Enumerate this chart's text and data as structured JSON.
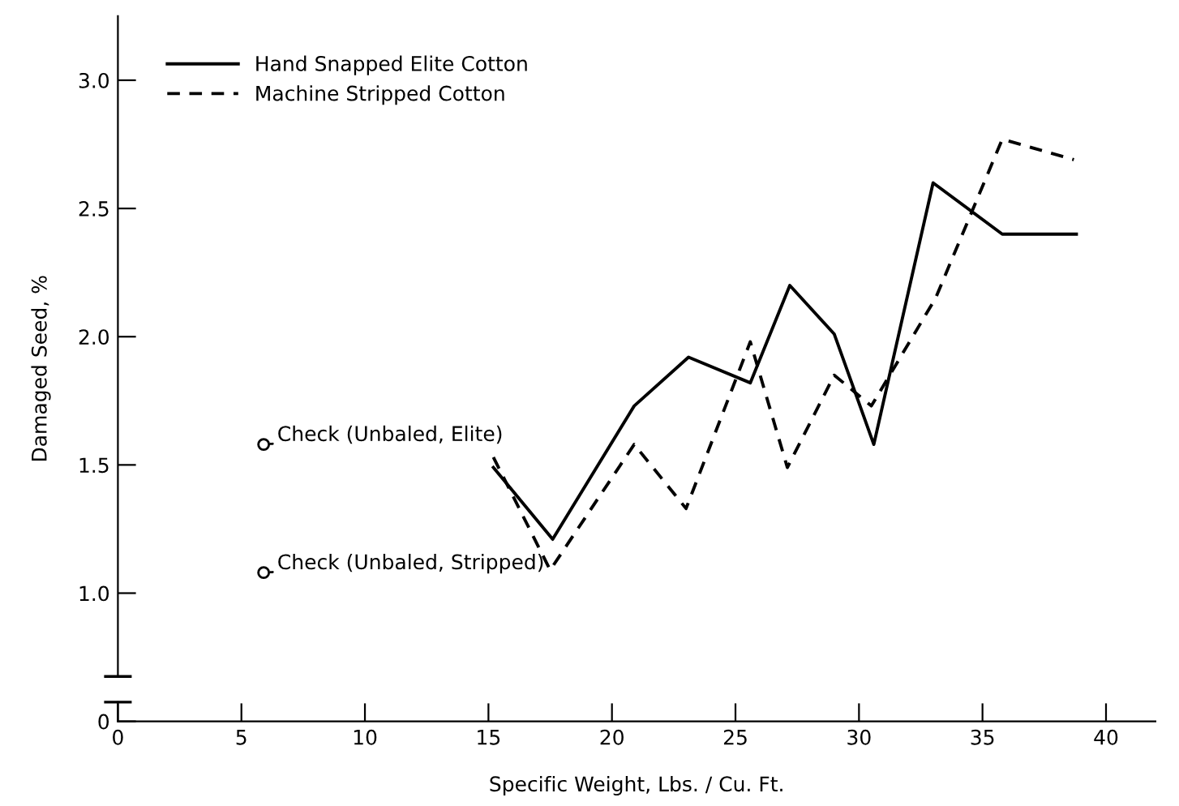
{
  "chart_data": {
    "type": "line",
    "xlabel": "Specific Weight, Lbs. / Cu. Ft.",
    "ylabel": "Damaged Seed, %",
    "xlim": [
      0,
      42
    ],
    "ylim": [
      0.5,
      3.25
    ],
    "xticks": [
      0,
      5,
      10,
      15,
      20,
      25,
      30,
      35,
      40
    ],
    "yticks": [
      {
        "value": 0.5,
        "label": "0"
      },
      {
        "value": 1.0,
        "label": "1.0"
      },
      {
        "value": 1.5,
        "label": "1.5"
      },
      {
        "value": 2.0,
        "label": "2.0"
      },
      {
        "value": 2.5,
        "label": "2.5"
      },
      {
        "value": 3.0,
        "label": "3.0"
      }
    ],
    "legend": "top left",
    "grid": false,
    "series": [
      {
        "name": "Hand Snapped Elite Cotton",
        "color": "#000000",
        "line_style": "solid",
        "x": [
          15.2,
          17.6,
          20.9,
          23.1,
          25.6,
          27.2,
          29.0,
          30.6,
          33.0,
          35.8,
          38.8
        ],
        "values": [
          1.49,
          1.21,
          1.73,
          1.92,
          1.82,
          2.2,
          2.01,
          1.58,
          2.6,
          2.4,
          2.4
        ]
      },
      {
        "name": "Machine Stripped Cotton",
        "color": "#000000",
        "line_style": "dashed",
        "x": [
          15.2,
          17.5,
          20.9,
          23.0,
          25.6,
          27.1,
          29.0,
          30.5,
          33.1,
          35.8,
          38.7
        ],
        "values": [
          1.53,
          1.09,
          1.58,
          1.33,
          1.98,
          1.49,
          1.85,
          1.73,
          2.15,
          2.77,
          2.69
        ]
      },
      {
        "type": "scatter",
        "color": "#000000",
        "marker": "circle",
        "x": [
          5.9,
          5.9
        ],
        "values": [
          1.58,
          1.08
        ]
      }
    ],
    "annotations": [
      {
        "text": "Check (Unbaled, Elite)",
        "x": 5.9,
        "y": 1.58
      },
      {
        "text": "Check (Unbaled, Stripped)",
        "x": 5.9,
        "y": 1.08
      }
    ]
  }
}
